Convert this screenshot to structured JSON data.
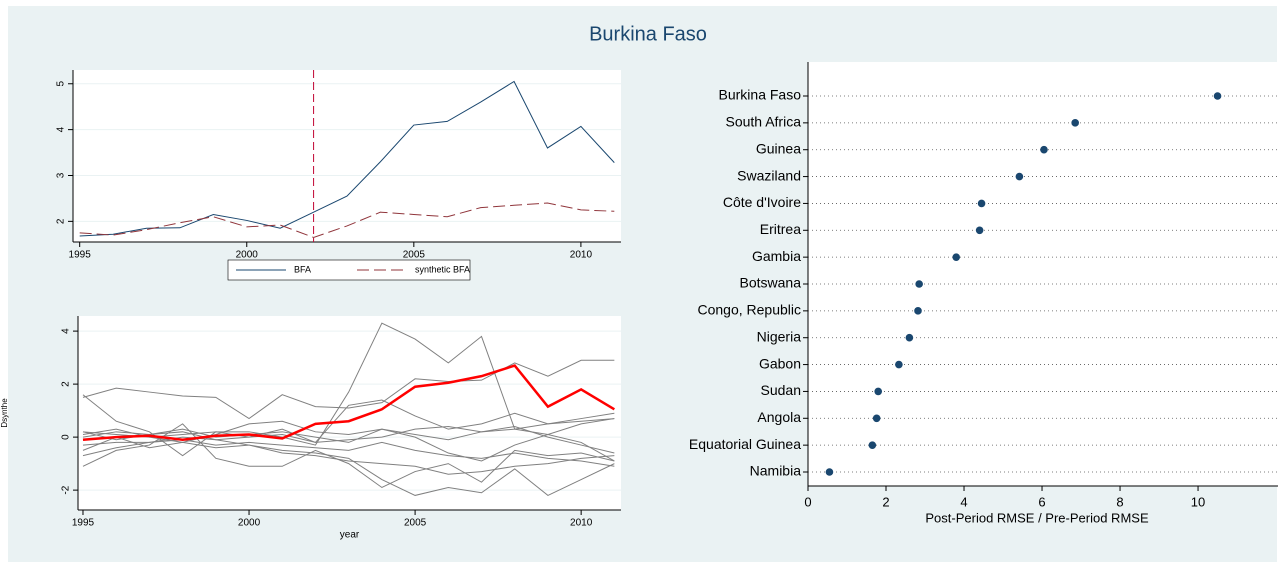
{
  "title": "Burkina Faso",
  "chart_data": [
    {
      "type": "line",
      "x": [
        1995,
        1996,
        1997,
        1998,
        1999,
        2000,
        2001,
        2002,
        2003,
        2004,
        2005,
        2006,
        2007,
        2008,
        2009,
        2010,
        2011
      ],
      "series": [
        {
          "name": "BFA",
          "color": "#1a476f",
          "dash": false,
          "width": 1,
          "values": [
            1.68,
            1.72,
            1.85,
            1.86,
            2.15,
            2.02,
            1.85,
            2.2,
            2.55,
            3.3,
            4.1,
            4.18,
            4.6,
            5.05,
            3.6,
            4.07,
            3.28
          ]
        },
        {
          "name": "synthetic BFA",
          "color": "#90353b",
          "dash": true,
          "width": 1,
          "values": [
            1.75,
            1.7,
            1.82,
            1.97,
            2.1,
            1.88,
            1.92,
            1.65,
            1.9,
            2.2,
            2.15,
            2.1,
            2.3,
            2.35,
            2.4,
            2.25,
            2.22
          ]
        }
      ],
      "xline": 2002,
      "xline_color": "#c10534",
      "xlim": [
        1994.8,
        2011.2
      ],
      "xticks": [
        1995,
        2000,
        2005,
        2010
      ],
      "ylim": [
        1.55,
        5.3
      ],
      "yticks": [
        2,
        3,
        4,
        5
      ],
      "grid": true,
      "legend": "bottom"
    },
    {
      "type": "line",
      "x": [
        1995,
        1996,
        1997,
        1998,
        1999,
        2000,
        2001,
        2002,
        2003,
        2004,
        2005,
        2006,
        2007,
        2008,
        2009,
        2010,
        2011
      ],
      "xlabel": "year",
      "ylabel": "Dsynthe",
      "series": [
        {
          "color": "#808080",
          "width": 1,
          "values": [
            0.2,
            0.1,
            0.0,
            0.1,
            0.2,
            0.2,
            0.0,
            -0.3,
            1.7,
            4.3,
            3.7,
            2.8,
            3.8,
            0.3,
            0.1,
            0.5,
            0.7
          ]
        },
        {
          "color": "#808080",
          "width": 1,
          "values": [
            1.5,
            1.85,
            1.7,
            1.55,
            1.5,
            0.7,
            1.6,
            1.15,
            1.1,
            1.3,
            2.2,
            2.1,
            2.15,
            2.8,
            2.3,
            2.9,
            2.9
          ]
        },
        {
          "color": "#808080",
          "width": 1,
          "values": [
            1.6,
            0.6,
            0.2,
            -0.7,
            0.2,
            0.0,
            0.3,
            -0.2,
            1.2,
            1.4,
            0.8,
            0.3,
            0.5,
            0.9,
            0.5,
            0.7,
            0.9
          ]
        },
        {
          "color": "#808080",
          "width": 1,
          "values": [
            -1.1,
            -0.5,
            -0.3,
            0.5,
            -0.8,
            -1.1,
            -1.1,
            -0.5,
            -1.0,
            -1.9,
            -1.3,
            -1.0,
            -1.7,
            -0.5,
            -0.7,
            -0.6,
            -0.9
          ]
        },
        {
          "color": "#808080",
          "width": 1,
          "values": [
            -0.7,
            -0.4,
            -0.2,
            0.0,
            -0.1,
            -0.3,
            -0.5,
            -0.6,
            -0.8,
            -1.6,
            -2.2,
            -1.9,
            -2.1,
            -1.2,
            -2.2,
            -1.6,
            -1.0
          ]
        },
        {
          "color": "#808080",
          "width": 1,
          "values": [
            0.1,
            0.3,
            0.0,
            -0.2,
            0.1,
            0.5,
            0.6,
            0.2,
            0.1,
            0.3,
            0.0,
            -0.6,
            -0.9,
            -0.3,
            0.1,
            -0.2,
            -0.9
          ]
        },
        {
          "color": "#808080",
          "width": 1,
          "values": [
            -0.3,
            -0.2,
            -0.2,
            -0.1,
            -0.3,
            -0.2,
            -0.3,
            -0.4,
            -0.5,
            -0.2,
            -0.5,
            -0.7,
            -0.8,
            -0.6,
            -0.8,
            -0.9,
            -1.1
          ]
        },
        {
          "color": "#808080",
          "width": 1,
          "values": [
            0.2,
            -0.1,
            0.1,
            0.3,
            0.0,
            0.1,
            0.2,
            0.0,
            -0.2,
            0.3,
            0.1,
            -0.1,
            0.2,
            0.4,
            0.0,
            -0.3,
            -0.6
          ]
        },
        {
          "color": "#808080",
          "width": 1,
          "values": [
            -0.5,
            0.0,
            -0.4,
            -0.2,
            -0.4,
            -0.3,
            -0.6,
            -0.7,
            -0.9,
            -1.0,
            -1.1,
            -1.4,
            -1.3,
            -1.1,
            -1.0,
            -0.8,
            -0.7
          ]
        },
        {
          "color": "#808080",
          "width": 1,
          "values": [
            0.0,
            0.2,
            0.1,
            0.2,
            -0.1,
            0.0,
            0.1,
            -0.2,
            -0.1,
            0.0,
            0.3,
            0.4,
            0.2,
            0.3,
            0.5,
            0.6,
            0.7
          ]
        },
        {
          "color": "#ff0000",
          "width": 2.5,
          "values": [
            -0.1,
            0.0,
            0.05,
            -0.1,
            0.05,
            0.1,
            -0.05,
            0.5,
            0.6,
            1.05,
            1.9,
            2.05,
            2.3,
            2.7,
            1.15,
            1.8,
            1.05
          ]
        }
      ],
      "xlim": [
        1994.85,
        2011.2
      ],
      "xticks": [
        1995,
        2000,
        2005,
        2010
      ],
      "ylim": [
        -2.75,
        4.57
      ],
      "yticks": [
        -2,
        0,
        2,
        4
      ],
      "grid": true
    },
    {
      "type": "dot",
      "categories": [
        "Burkina Faso",
        "South Africa",
        "Guinea",
        "Swaziland",
        "Côte d'Ivoire",
        "Eritrea",
        "Gambia",
        "Botswana",
        "Congo, Republic",
        "Nigeria",
        "Gabon",
        "Sudan",
        "Angola",
        "Equatorial Guinea",
        "Namibia"
      ],
      "values": [
        10.5,
        6.85,
        6.05,
        5.42,
        4.45,
        4.4,
        3.8,
        2.85,
        2.82,
        2.6,
        2.33,
        1.8,
        1.76,
        1.65,
        0.55
      ],
      "color": "#1a476f",
      "xlabel": "Post-Period RMSE / Pre-Period RMSE",
      "xlim": [
        0,
        12.05
      ],
      "xticks": [
        0,
        2,
        4,
        6,
        8,
        10
      ]
    }
  ]
}
